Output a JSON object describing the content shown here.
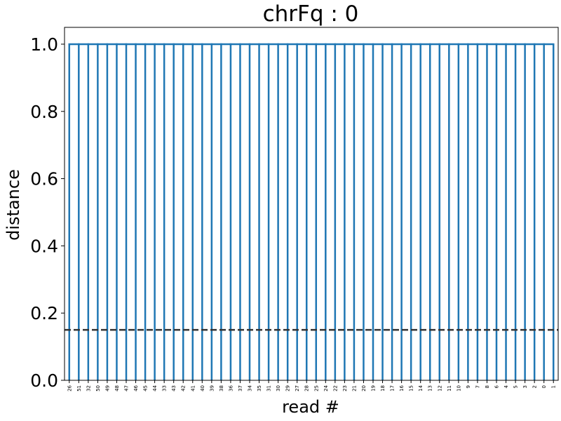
{
  "chart_data": {
    "type": "dendrogram",
    "title": "chrFq : 0",
    "xlabel": "read #",
    "ylabel": "distance",
    "ylim": [
      0,
      1.05
    ],
    "yticks": [
      "0.0",
      "0.2",
      "0.4",
      "0.6",
      "0.8",
      "1.0"
    ],
    "leaves": [
      "26",
      "51",
      "32",
      "50",
      "49",
      "48",
      "47",
      "46",
      "45",
      "44",
      "33",
      "43",
      "42",
      "41",
      "40",
      "39",
      "38",
      "36",
      "37",
      "34",
      "35",
      "31",
      "30",
      "29",
      "27",
      "28",
      "25",
      "24",
      "22",
      "23",
      "21",
      "20",
      "19",
      "18",
      "17",
      "16",
      "15",
      "14",
      "13",
      "12",
      "11",
      "10",
      "9",
      "7",
      "8",
      "6",
      "4",
      "5",
      "3",
      "2",
      "0",
      "1"
    ],
    "merge_height": 1.0,
    "threshold": 0.15,
    "colors": {
      "tree": "#1f77b4",
      "threshold": "#333333"
    },
    "grid": false
  }
}
